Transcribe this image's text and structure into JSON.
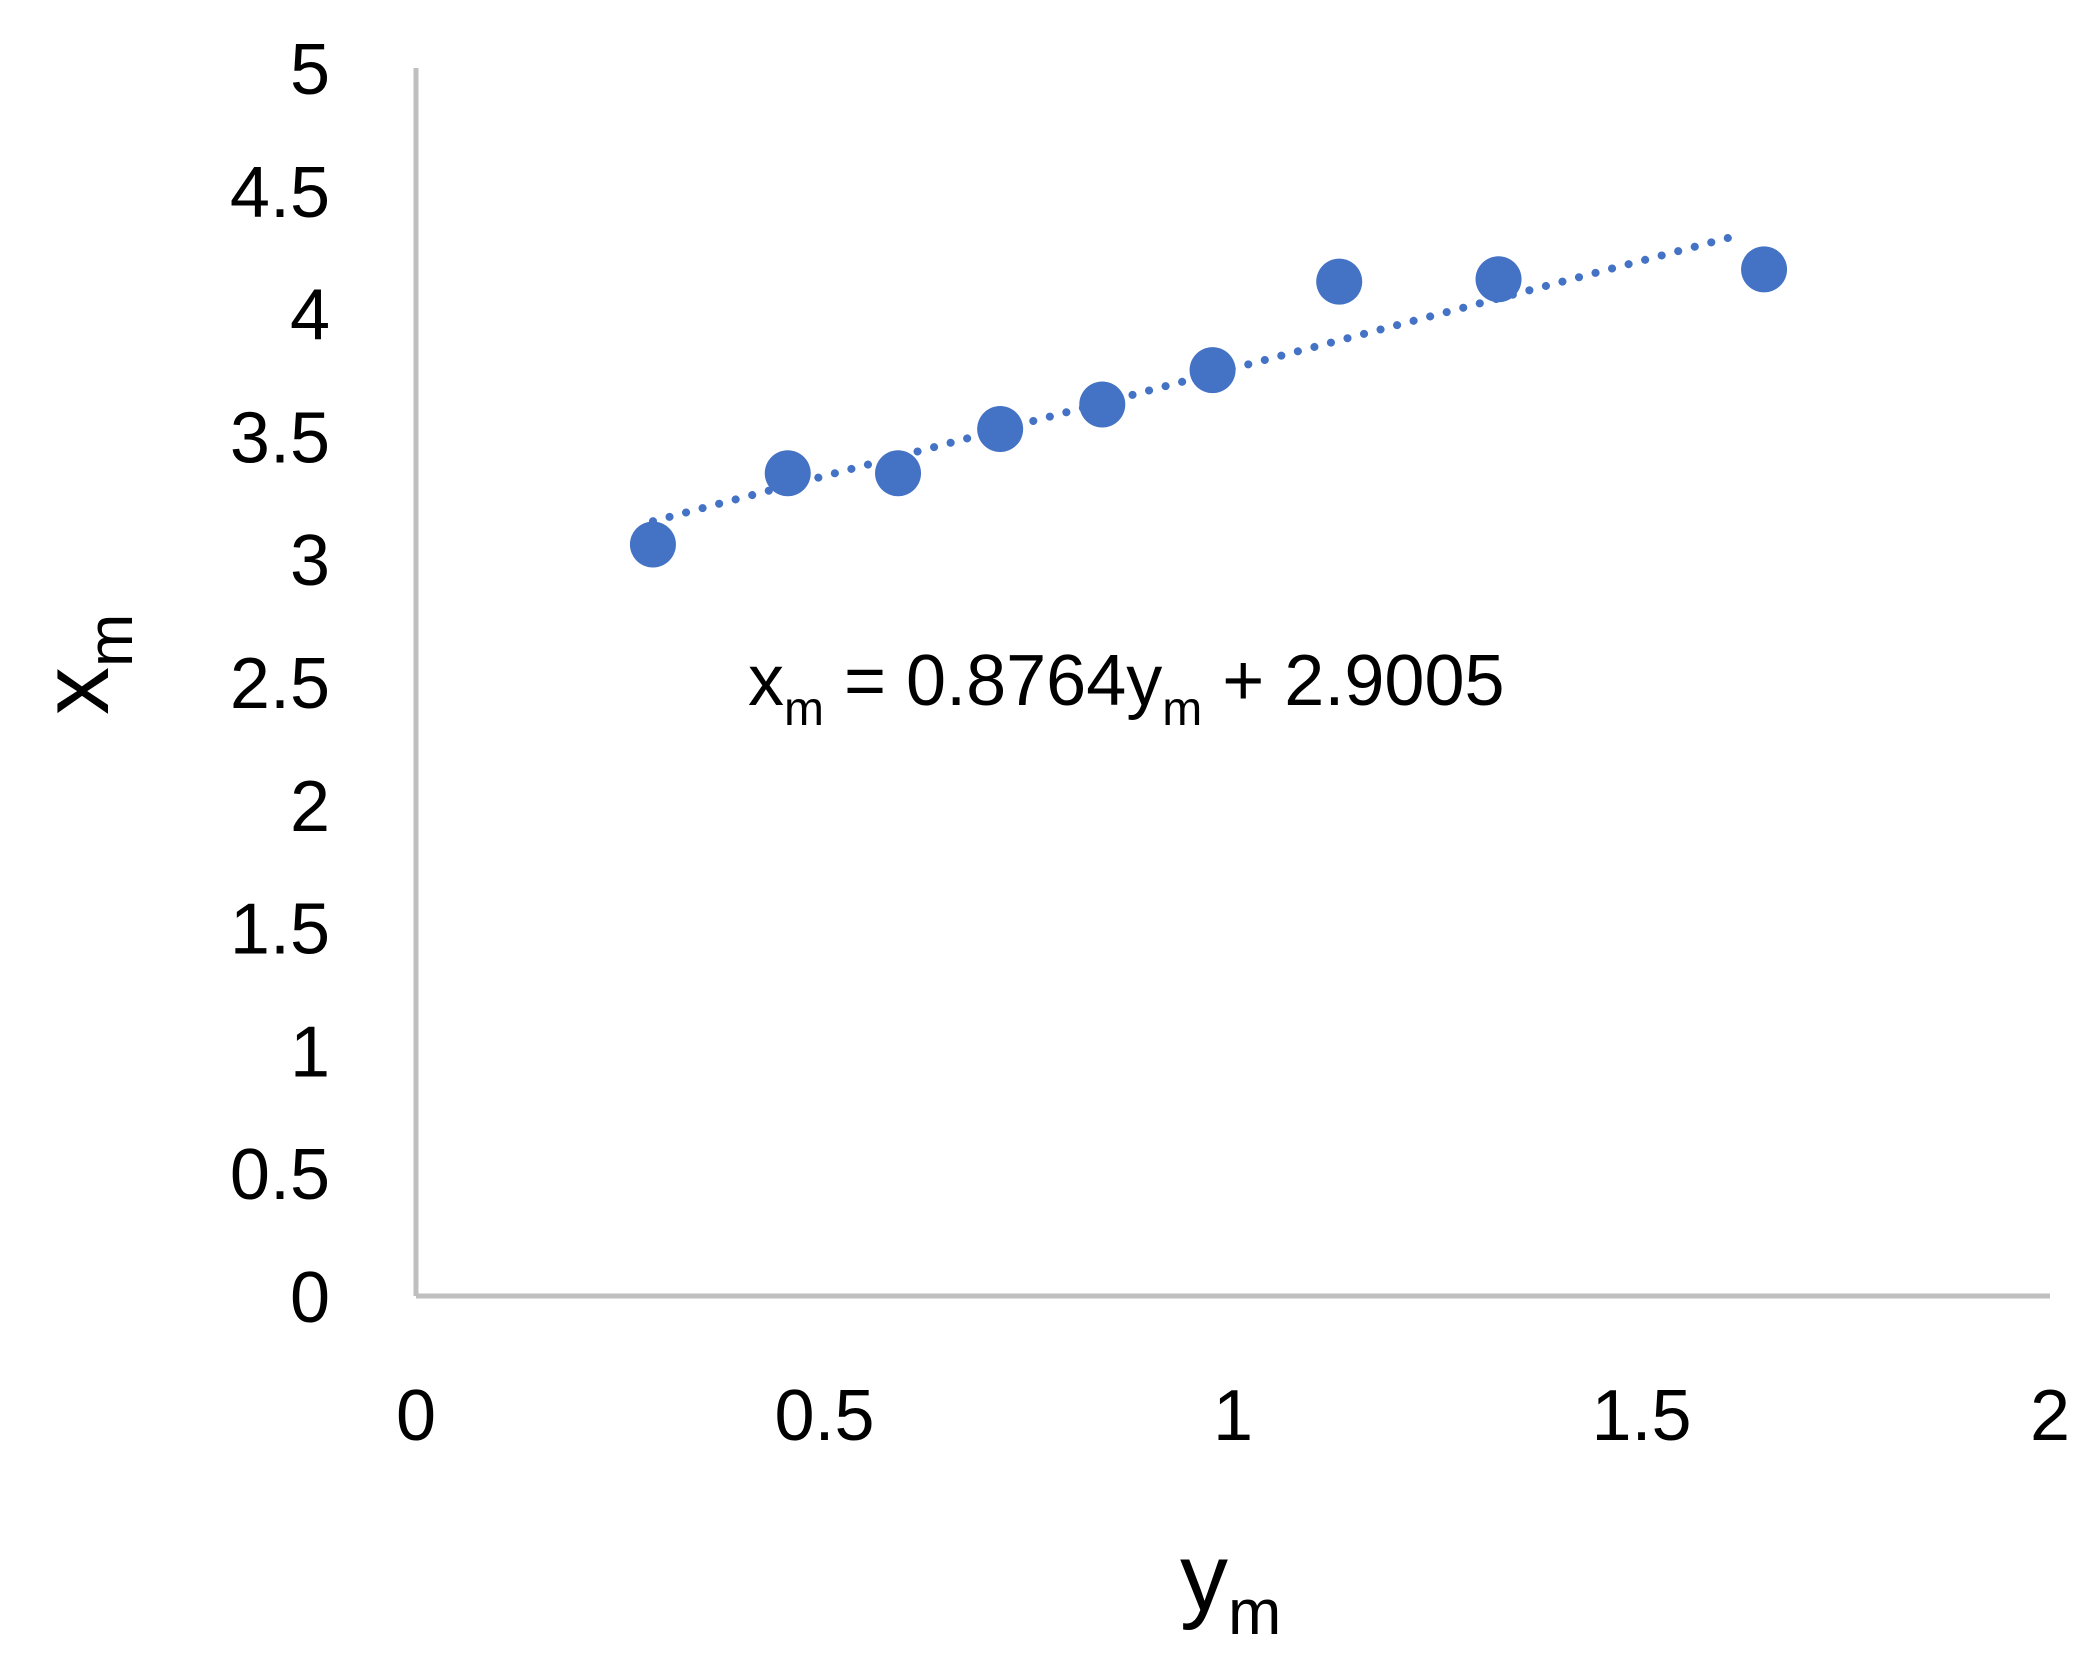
{
  "chart_data": {
    "type": "scatter",
    "xlabel_main": "y",
    "xlabel_sub": "m",
    "ylabel_main": "x",
    "ylabel_sub": "m",
    "xlim": [
      0,
      2
    ],
    "ylim": [
      0,
      5
    ],
    "x_ticks": [
      0,
      0.5,
      1,
      1.5,
      2
    ],
    "x_tick_labels": [
      "0",
      "0.5",
      "1",
      "1.5",
      "2"
    ],
    "y_ticks": [
      0,
      0.5,
      1,
      1.5,
      2,
      2.5,
      3,
      3.5,
      4,
      4.5,
      5
    ],
    "y_tick_labels": [
      "0",
      "0.5",
      "1",
      "1.5",
      "2",
      "2.5",
      "3",
      "3.5",
      "4",
      "4.5",
      "5"
    ],
    "grid": false,
    "legend": "none",
    "series": [
      {
        "x": [
          0.29,
          0.455,
          0.59,
          0.715,
          0.84,
          0.975,
          1.13,
          1.325,
          1.65
        ],
        "y": [
          3.06,
          3.35,
          3.35,
          3.53,
          3.63,
          3.77,
          4.13,
          4.14,
          4.18
        ],
        "color": "#4472C4"
      }
    ],
    "trendline": {
      "style": "dotted",
      "color": "#4472C4",
      "slope": 0.8764,
      "intercept": 2.9005,
      "x_range": [
        0.29,
        1.62
      ]
    },
    "annotation": {
      "lhs_main": "x",
      "lhs_sub": "m",
      "middle": " = 0.8764y",
      "mid_sub": "m",
      "rhs": " + 2.9005"
    },
    "axis_color": "#BFBFBF"
  }
}
